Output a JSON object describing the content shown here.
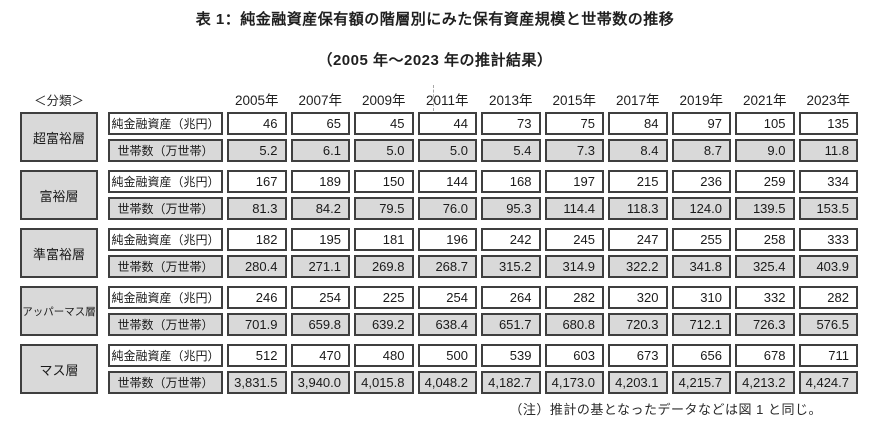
{
  "title": "表 1：純金融資産保有額の階層別にみた保有資産規模と世帯数の推移",
  "subtitle": "（2005 年～2023 年の推計結果）",
  "footnote": "（注）推計の基となったデータなどは図 1 と同じ。",
  "colors": {
    "cell_border": "#3f3f3f",
    "shaded_bg": "#d9d9d9",
    "text": "#1a1a1a"
  },
  "table": {
    "classification_header": "＜分類＞",
    "years": [
      "2005年",
      "2007年",
      "2009年",
      "2011年",
      "2013年",
      "2015年",
      "2017年",
      "2019年",
      "2021年",
      "2023年"
    ],
    "metric_labels": {
      "assets": "純金融資産（兆円）",
      "households": "世帯数（万世帯）"
    },
    "groups": [
      {
        "tier": "超富裕層",
        "assets": [
          "46",
          "65",
          "45",
          "44",
          "73",
          "75",
          "84",
          "97",
          "105",
          "135"
        ],
        "households": [
          "5.2",
          "6.1",
          "5.0",
          "5.0",
          "5.4",
          "7.3",
          "8.4",
          "8.7",
          "9.0",
          "11.8"
        ]
      },
      {
        "tier": "富裕層",
        "assets": [
          "167",
          "189",
          "150",
          "144",
          "168",
          "197",
          "215",
          "236",
          "259",
          "334"
        ],
        "households": [
          "81.3",
          "84.2",
          "79.5",
          "76.0",
          "95.3",
          "114.4",
          "118.3",
          "124.0",
          "139.5",
          "153.5"
        ]
      },
      {
        "tier": "準富裕層",
        "assets": [
          "182",
          "195",
          "181",
          "196",
          "242",
          "245",
          "247",
          "255",
          "258",
          "333"
        ],
        "households": [
          "280.4",
          "271.1",
          "269.8",
          "268.7",
          "315.2",
          "314.9",
          "322.2",
          "341.8",
          "325.4",
          "403.9"
        ]
      },
      {
        "tier": "アッパーマス層",
        "assets": [
          "246",
          "254",
          "225",
          "254",
          "264",
          "282",
          "320",
          "310",
          "332",
          "282"
        ],
        "households": [
          "701.9",
          "659.8",
          "639.2",
          "638.4",
          "651.7",
          "680.8",
          "720.3",
          "712.1",
          "726.3",
          "576.5"
        ]
      },
      {
        "tier": "マス層",
        "assets": [
          "512",
          "470",
          "480",
          "500",
          "539",
          "603",
          "673",
          "656",
          "678",
          "711"
        ],
        "households": [
          "3,831.5",
          "3,940.0",
          "4,015.8",
          "4,048.2",
          "4,182.7",
          "4,173.0",
          "4,203.1",
          "4,215.7",
          "4,213.2",
          "4,424.7"
        ]
      }
    ]
  }
}
